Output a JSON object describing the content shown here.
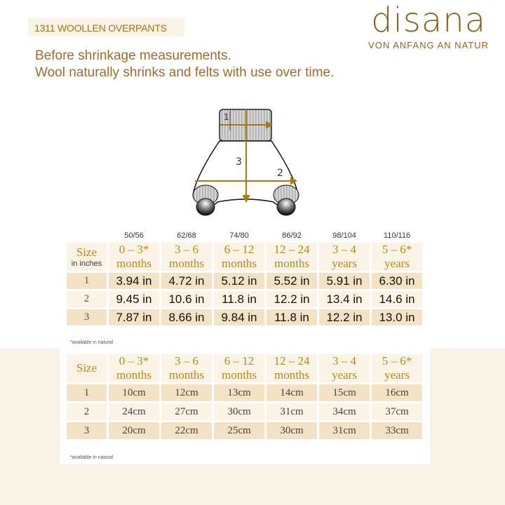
{
  "header": {
    "product_tag": "1311 WOOLLEN OVERPANTS"
  },
  "logo": {
    "word": "disana",
    "tagline": "VON ANFANG AN NATUR"
  },
  "intro": [
    "Before shrinkage measurements.",
    "Wool naturally shrinks and felts with use over time."
  ],
  "diagram": {
    "labels": [
      "1",
      "2",
      "3"
    ],
    "accent": "#a77a12"
  },
  "colors": {
    "gold": "#b38a19",
    "row_dark": "#f3e2c3",
    "row_light": "#fbf3e3",
    "header_bg": "#fbf4e6"
  },
  "table_inches": {
    "sizes": [
      "50/56",
      "62/68",
      "74/80",
      "86/92",
      "98/104",
      "110/116"
    ],
    "corner": "Size",
    "corner_sub": "in inches",
    "columns": [
      [
        "0 – 3*",
        "months"
      ],
      [
        "3 – 6",
        "months"
      ],
      [
        "6 – 12",
        "months"
      ],
      [
        "12 – 24",
        "months"
      ],
      [
        "3 – 4",
        "years"
      ],
      [
        "5 – 6*",
        "years"
      ]
    ],
    "rows": [
      {
        "label": "1",
        "values": [
          "3.94 in",
          "4.72 in",
          "5.12 in",
          "5.52 in",
          "5.91 in",
          "6.30 in"
        ]
      },
      {
        "label": "2",
        "values": [
          "9.45 in",
          "10.6 in",
          "11.8 in",
          "12.2 in",
          "13.4 in",
          "14.6 in"
        ]
      },
      {
        "label": "3",
        "values": [
          "7.87 in",
          "8.66 in",
          "9.84 in",
          "11.8 in",
          "12.2 in",
          "13.0 in"
        ]
      }
    ],
    "note": "*available in natural"
  },
  "table_cm": {
    "corner": "Size",
    "columns": [
      [
        "0 – 3*",
        "months"
      ],
      [
        "3 – 6",
        "months"
      ],
      [
        "6 – 12",
        "months"
      ],
      [
        "12 – 24",
        "months"
      ],
      [
        "3 – 4",
        "years"
      ],
      [
        "5 – 6*",
        "years"
      ]
    ],
    "rows": [
      {
        "label": "1",
        "values": [
          "10cm",
          "12cm",
          "13cm",
          "14cm",
          "15cm",
          "16cm"
        ]
      },
      {
        "label": "2",
        "values": [
          "24cm",
          "27cm",
          "30cm",
          "31cm",
          "34cm",
          "37cm"
        ]
      },
      {
        "label": "3",
        "values": [
          "20cm",
          "22cm",
          "25cm",
          "30cm",
          "31cm",
          "33cm"
        ]
      }
    ],
    "note": "*available in natural"
  }
}
